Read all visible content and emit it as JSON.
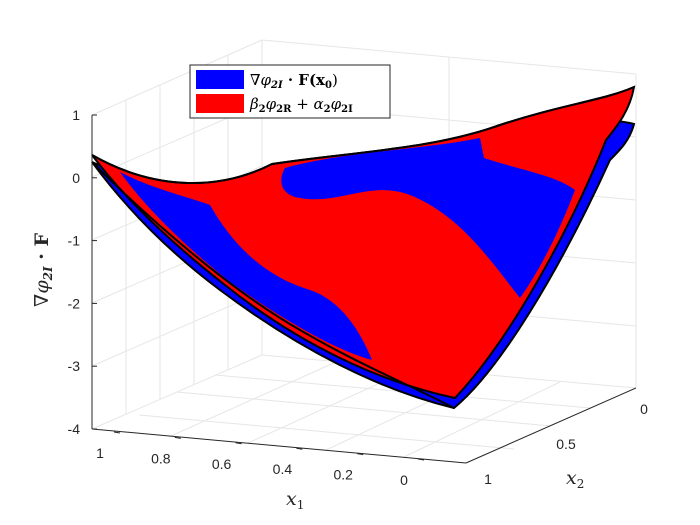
{
  "chart_data": {
    "type": "surface3d",
    "ylabel_text": "∇φ",
    "ylabel_sub": "2I",
    "ylabel_tail": " · F",
    "xlabel_text": "x",
    "xlabel_sub": "1",
    "x2label_text": "x",
    "x2label_sub": "2",
    "z_ticks": [
      "1",
      "0",
      "-1",
      "-2",
      "-3",
      "-4"
    ],
    "x1_ticks": [
      "1",
      "0.8",
      "0.6",
      "0.4",
      "0.2",
      "0"
    ],
    "x2_ticks": [
      "0",
      "0.5",
      "1"
    ],
    "zlim": [
      -4,
      1
    ],
    "x1lim": [
      0,
      1
    ],
    "x2lim": [
      0,
      1
    ],
    "grid": true,
    "legend_position": "top-center",
    "series": [
      {
        "name": "∇φ2I · F(x0)",
        "legend_main": "∇φ",
        "legend_sub": "2I",
        "legend_mid": " · F(x",
        "legend_sub2": "0",
        "legend_tail": ")",
        "color": "#0000ff"
      },
      {
        "name": "β2φ2R + α2φ2I",
        "legend_main": "β",
        "legend_sub": "2",
        "legend_mid": "φ",
        "legend_sub2": "2R",
        "legend_mid2": " + α",
        "legend_sub3": "2",
        "legend_mid3": "φ",
        "legend_sub4": "2I",
        "color": "#ff0000"
      }
    ]
  }
}
